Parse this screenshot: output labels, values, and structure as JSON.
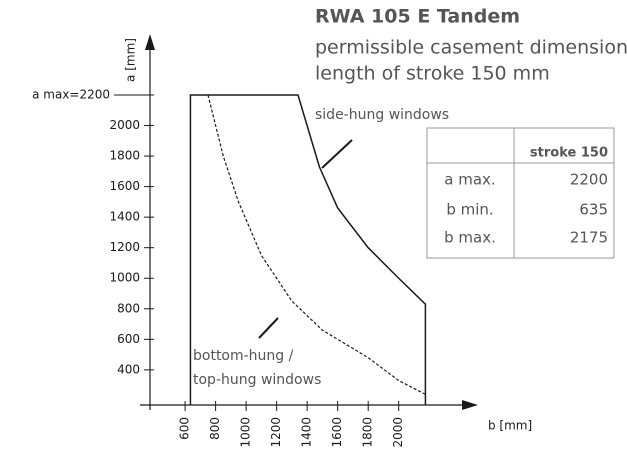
{
  "chart_data": {
    "type": "line",
    "title": "RWA 105 E Tandem",
    "subtitle": [
      "permissible casement dimensions,",
      "length of stroke 150 mm"
    ],
    "xlabel": "b [mm]",
    "ylabel": "a [mm]",
    "xlim": [
      370,
      2500
    ],
    "ylim": [
      170,
      2560
    ],
    "xticks": [
      600,
      800,
      1000,
      1200,
      1400,
      1600,
      1800,
      2000
    ],
    "yticks": [
      400,
      600,
      800,
      1000,
      1200,
      1400,
      1600,
      1800,
      2000,
      {
        "value": 2200,
        "label": "a max=2200"
      }
    ],
    "series": [
      {
        "color": "#1a1a1a",
        "style": "solid",
        "x": [
          635,
          635,
          1340,
          1480,
          1600,
          1800,
          2000,
          2175,
          2175
        ],
        "values": [
          170,
          2200,
          2200,
          1730,
          1460,
          1200,
          1000,
          830,
          170
        ]
      },
      {
        "color": "#1a1a1a",
        "style": "dashed",
        "x": [
          750,
          850,
          950,
          1100,
          1300,
          1500,
          1800,
          2000,
          2175
        ],
        "values": [
          2200,
          1800,
          1500,
          1150,
          850,
          660,
          480,
          330,
          240
        ]
      }
    ],
    "annotations": [
      "side-hung windows",
      "bottom-hung /",
      "top-hung windows"
    ]
  },
  "table": {
    "header": "stroke 150",
    "rows": [
      [
        "a max.",
        2200
      ],
      [
        "b min.",
        635
      ],
      [
        "b max.",
        2175
      ]
    ]
  }
}
